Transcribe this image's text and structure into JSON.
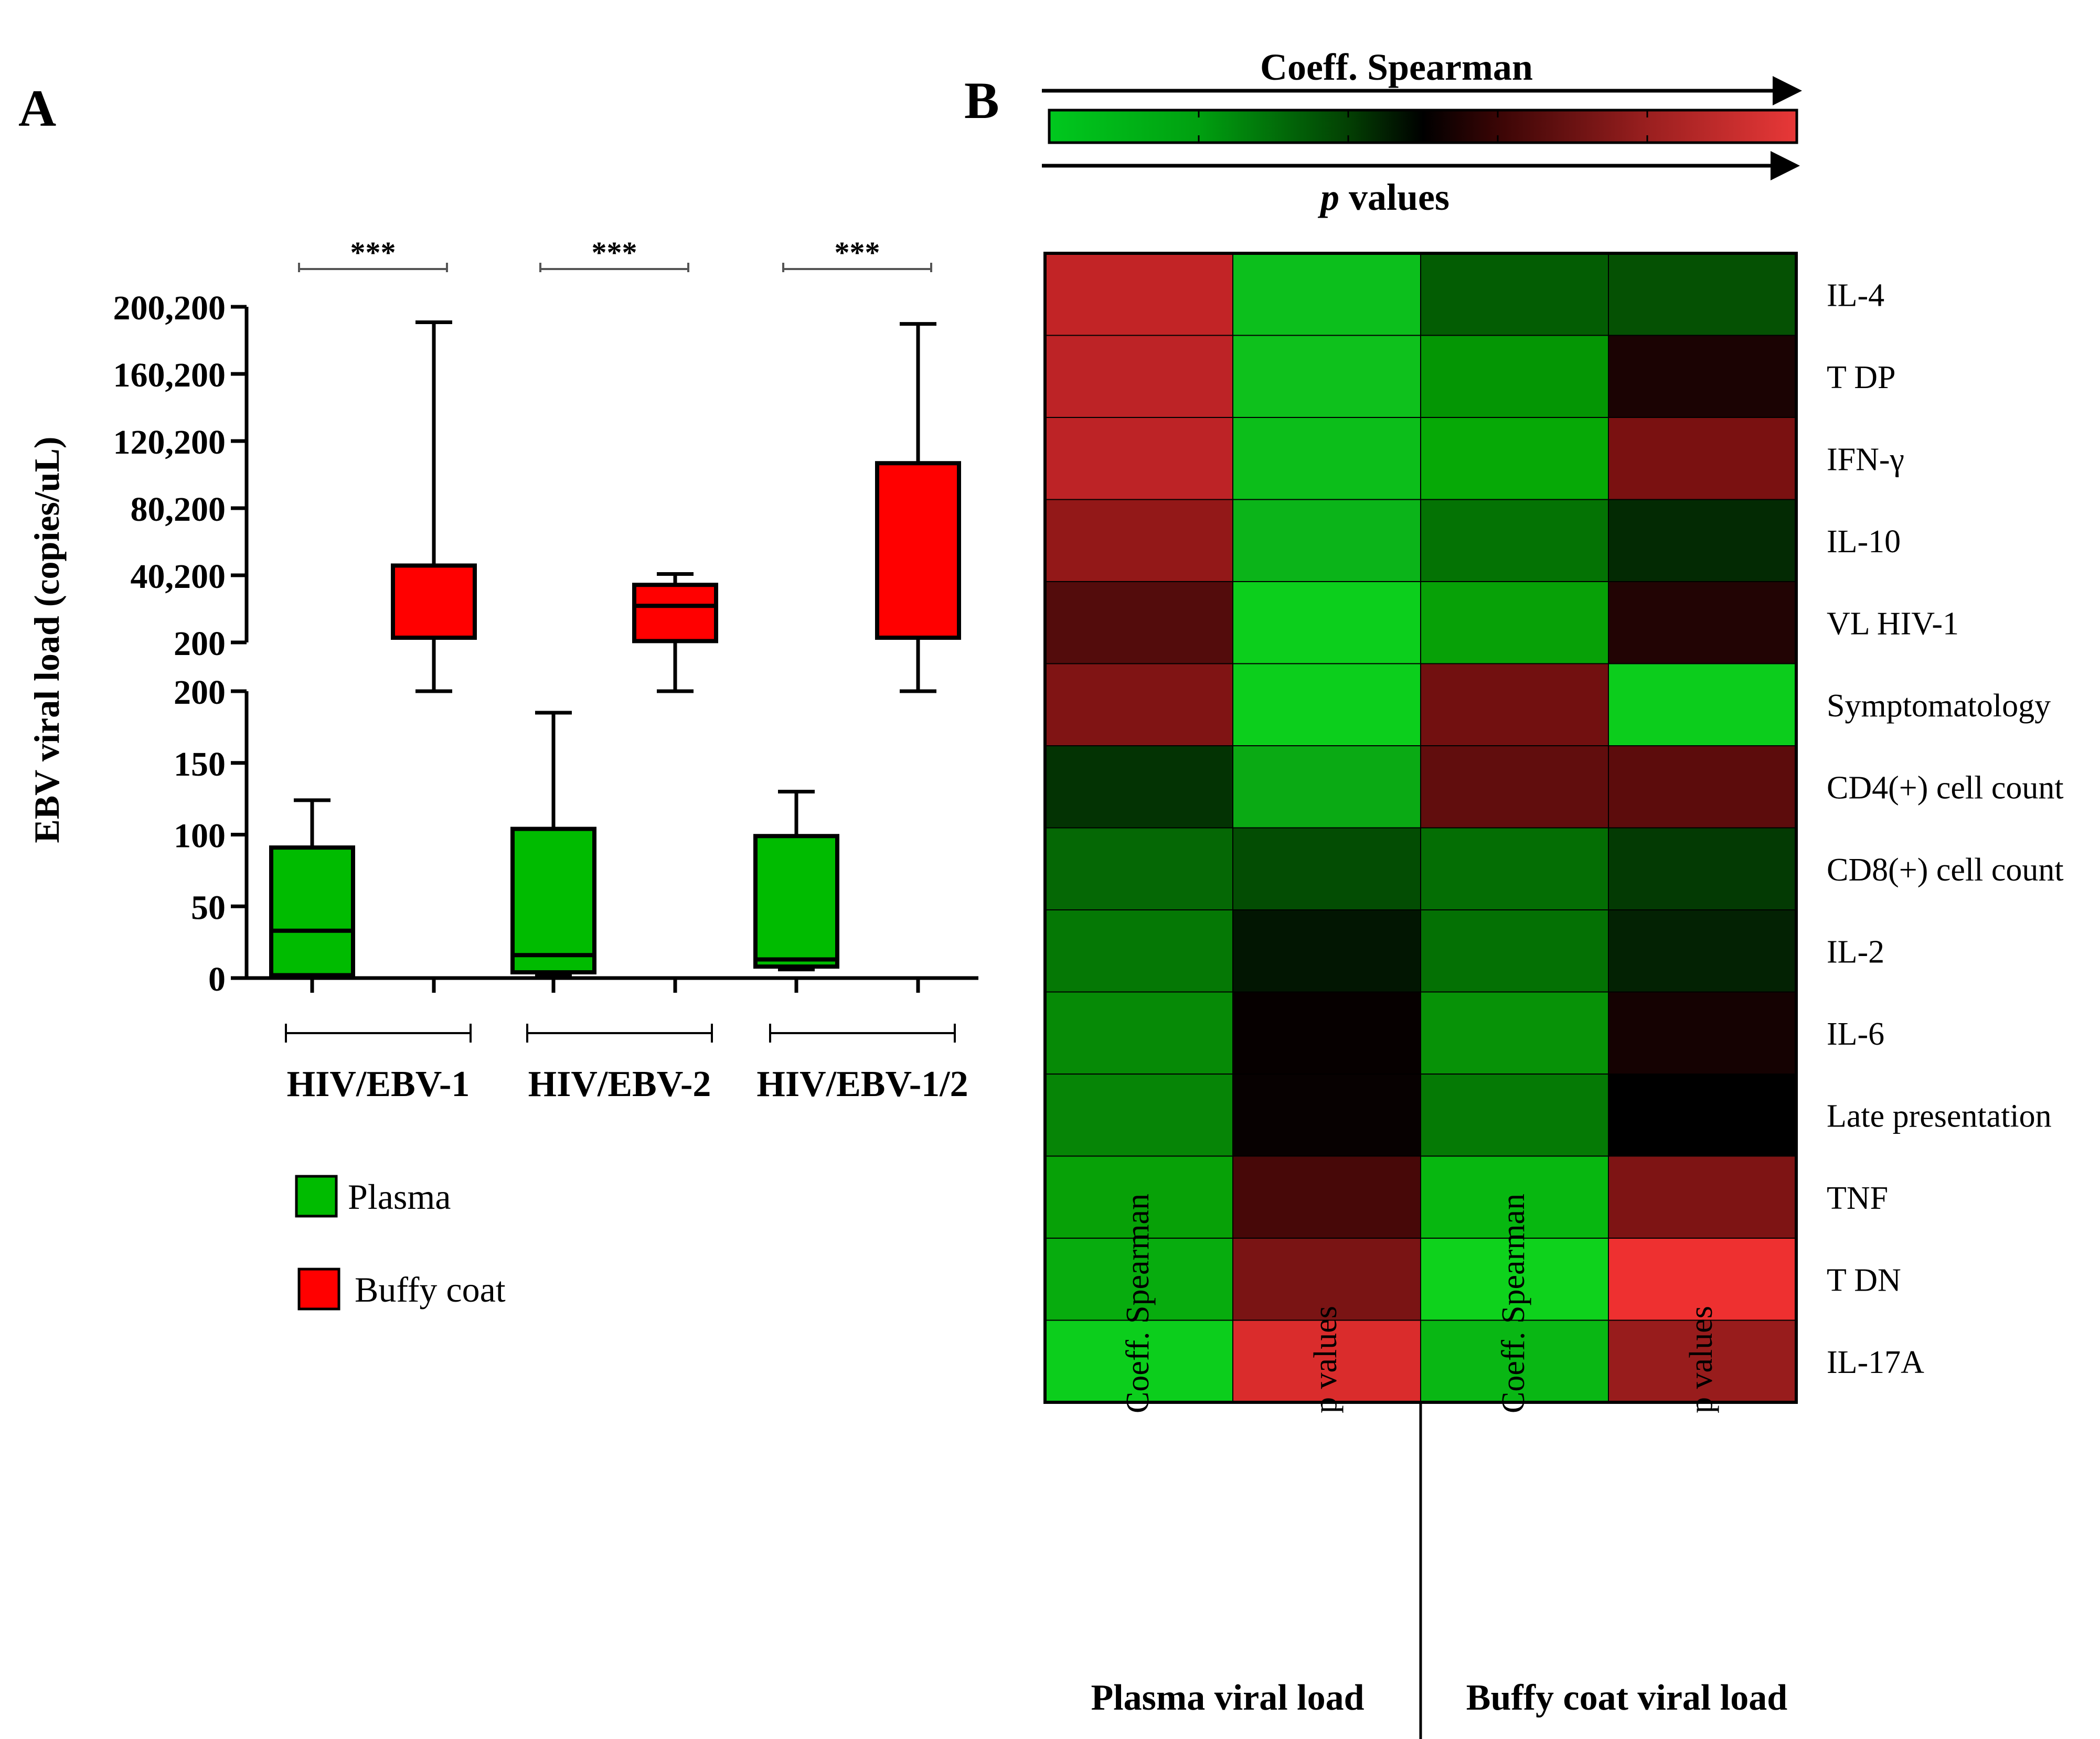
{
  "panel_a": {
    "letter": "A",
    "chart_data": {
      "type": "box",
      "title": "",
      "ylabel": "EBV viral load (copies/uL)",
      "y_axis_broken": true,
      "upper_segment": {
        "ylim": [
          200,
          200200
        ],
        "ticks": [
          "200",
          "40,200",
          "80,200",
          "120,200",
          "160,200",
          "200,200"
        ],
        "tick_values": [
          200,
          40200,
          80200,
          120200,
          160200,
          200200
        ]
      },
      "lower_segment": {
        "ylim": [
          0,
          200
        ],
        "ticks": [
          "0",
          "50",
          "100",
          "150",
          "200"
        ],
        "tick_values": [
          0,
          50,
          100,
          150,
          200
        ]
      },
      "groups": [
        {
          "label": "HIV/EBV-1",
          "significance": "***"
        },
        {
          "label": "HIV/EBV-2",
          "significance": "***"
        },
        {
          "label": "HIV/EBV-1/2",
          "significance": "***"
        }
      ],
      "series": [
        {
          "name": "Plasma",
          "color": "#00bb00",
          "boxes": [
            {
              "group": "HIV/EBV-1",
              "min": 0,
              "q1": 2,
              "median": 33,
              "q3": 91,
              "max": 124
            },
            {
              "group": "HIV/EBV-2",
              "min": 2,
              "q1": 4,
              "median": 16,
              "q3": 104,
              "max": 185
            },
            {
              "group": "HIV/EBV-1/2",
              "min": 6,
              "q1": 8,
              "median": 13,
              "q3": 99,
              "max": 130
            }
          ]
        },
        {
          "name": "Buffy coat",
          "color": "#ff0000",
          "boxes": [
            {
              "group": "HIV/EBV-1",
              "min": 200,
              "q1": 3000,
              "median": 3000,
              "q3": 46000,
              "max": 191000
            },
            {
              "group": "HIV/EBV-2",
              "min": 200,
              "q1": 1000,
              "median": 22000,
              "q3": 34500,
              "max": 41000
            },
            {
              "group": "HIV/EBV-1/2",
              "min": 200,
              "q1": 3000,
              "median": 3000,
              "q3": 107000,
              "max": 190000
            }
          ]
        }
      ],
      "legend": [
        {
          "label": "Plasma",
          "color": "#00bb00"
        },
        {
          "label": "Buffy coat",
          "color": "#ff0000"
        }
      ]
    }
  },
  "panel_b": {
    "letter": "B",
    "colorbar": {
      "top_label": "Coeff. Spearman",
      "bottom_label_italic": "p",
      "bottom_label_rest": " values",
      "colors": [
        "#00c81e",
        "#006a00",
        "#000000",
        "#6a0a0a",
        "#e83838"
      ]
    },
    "chart_data": {
      "type": "heatmap",
      "columns": [
        "Coeff. Spearman",
        "p values",
        "Coeff. Spearman",
        "p values"
      ],
      "column_groups": [
        {
          "label": "Plasma viral load",
          "columns": [
            0,
            1
          ]
        },
        {
          "label": "Buffy coat viral load",
          "columns": [
            2,
            3
          ]
        }
      ],
      "rows": [
        "IL-4",
        "T DP",
        "IFN-γ",
        "IL-10",
        "VL HIV-1",
        "Symptomatology",
        "CD4(+) cell count",
        "CD8(+) cell count",
        "IL-2",
        "IL-6",
        "Late presentation",
        "TNF",
        "T DN",
        "IL-17A"
      ],
      "cell_colors": [
        [
          "#c22426",
          "#0cbf1c",
          "#035d03",
          "#055103"
        ],
        [
          "#bd2326",
          "#0ec11c",
          "#049604",
          "#1b0303"
        ],
        [
          "#bd2326",
          "#0cbe1a",
          "#06a906",
          "#7a1111"
        ],
        [
          "#931818",
          "#0bb419",
          "#047304",
          "#032a03"
        ],
        [
          "#530c0c",
          "#0ccf1c",
          "#07a107",
          "#220404"
        ],
        [
          "#801414",
          "#0ccf1c",
          "#721010",
          "#0ccd1c"
        ],
        [
          "#033303",
          "#0aaa14",
          "#610d0d",
          "#5c0c0c"
        ],
        [
          "#056805",
          "#034d03",
          "#046e04",
          "#033a03"
        ],
        [
          "#057805",
          "#021602",
          "#047104",
          "#032203"
        ],
        [
          "#068a06",
          "#060000",
          "#079207",
          "#150202"
        ],
        [
          "#068506",
          "#070101",
          "#057a05",
          "#000000"
        ],
        [
          "#07a107",
          "#470808",
          "#07b710",
          "#7e1414"
        ],
        [
          "#07ac0e",
          "#7a1414",
          "#0ed21c",
          "#ee3030"
        ],
        [
          "#0cce1c",
          "#da2c2c",
          "#09b714",
          "#981c1c"
        ]
      ]
    }
  }
}
